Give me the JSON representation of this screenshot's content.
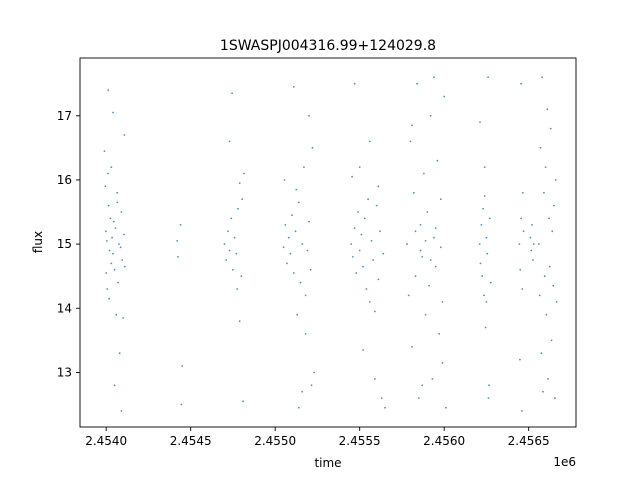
{
  "chart_data": {
    "type": "scatter",
    "title": "1SWASPJ004316.99+124029.8",
    "xlabel": "time",
    "ylabel": "flux",
    "x_offset_label": "1e6",
    "xlim": [
      2453845,
      2456780
    ],
    "ylim": [
      12.15,
      17.9
    ],
    "x_ticks": [
      2454000,
      2454500,
      2455000,
      2455500,
      2456000,
      2456500
    ],
    "x_tick_labels": [
      "2.4540",
      "2.4545",
      "2.4550",
      "2.4555",
      "2.4560",
      "2.4565"
    ],
    "y_ticks": [
      13,
      14,
      15,
      16,
      17
    ],
    "y_tick_labels": [
      "13",
      "14",
      "15",
      "16",
      "17"
    ],
    "grid": false,
    "marker_color": "#1f77b4",
    "marker": "point",
    "series": [
      {
        "values": [
          [
            2453990,
            16.45
          ],
          [
            2453995,
            15.9
          ],
          [
            2453998,
            15.2
          ],
          [
            2454000,
            14.55
          ],
          [
            2454004,
            15.05
          ],
          [
            2454006,
            14.3
          ],
          [
            2454010,
            16.1
          ],
          [
            2454015,
            15.6
          ],
          [
            2454020,
            14.9
          ],
          [
            2454025,
            15.4
          ],
          [
            2454030,
            14.7
          ],
          [
            2454035,
            15.1
          ],
          [
            2454040,
            14.85
          ],
          [
            2454045,
            15.35
          ],
          [
            2454050,
            14.6
          ],
          [
            2454055,
            15.25
          ],
          [
            2454060,
            13.9
          ],
          [
            2454065,
            15.8
          ],
          [
            2454070,
            14.4
          ],
          [
            2454075,
            15.0
          ],
          [
            2454080,
            13.3
          ],
          [
            2454085,
            14.95
          ],
          [
            2454090,
            15.5
          ],
          [
            2454095,
            14.75
          ],
          [
            2454100,
            13.85
          ],
          [
            2454105,
            15.15
          ],
          [
            2454110,
            14.65
          ],
          [
            2454040,
            17.05
          ],
          [
            2454012,
            17.4
          ],
          [
            2454030,
            16.2
          ],
          [
            2454050,
            12.8
          ],
          [
            2454090,
            12.4
          ],
          [
            2454108,
            16.7
          ],
          [
            2454018,
            14.15
          ],
          [
            2454066,
            15.65
          ],
          [
            2454420,
            15.05
          ],
          [
            2454425,
            14.8
          ],
          [
            2454440,
            15.3
          ],
          [
            2454450,
            13.1
          ],
          [
            2454445,
            12.5
          ],
          [
            2454700,
            15.0
          ],
          [
            2454710,
            14.75
          ],
          [
            2454720,
            15.2
          ],
          [
            2454730,
            14.9
          ],
          [
            2454740,
            15.4
          ],
          [
            2454750,
            14.6
          ],
          [
            2454760,
            15.1
          ],
          [
            2454770,
            14.85
          ],
          [
            2454780,
            15.55
          ],
          [
            2454790,
            13.8
          ],
          [
            2454800,
            14.5
          ],
          [
            2454805,
            15.7
          ],
          [
            2454810,
            12.55
          ],
          [
            2454815,
            16.1
          ],
          [
            2454745,
            17.35
          ],
          [
            2454730,
            16.6
          ],
          [
            2454790,
            15.95
          ],
          [
            2454775,
            14.3
          ],
          [
            2455050,
            14.95
          ],
          [
            2455060,
            15.3
          ],
          [
            2455070,
            14.7
          ],
          [
            2455080,
            15.1
          ],
          [
            2455090,
            14.85
          ],
          [
            2455100,
            15.45
          ],
          [
            2455110,
            14.55
          ],
          [
            2455120,
            15.2
          ],
          [
            2455130,
            13.9
          ],
          [
            2455140,
            15.65
          ],
          [
            2455150,
            14.4
          ],
          [
            2455160,
            15.0
          ],
          [
            2455170,
            16.2
          ],
          [
            2455180,
            13.6
          ],
          [
            2455190,
            14.9
          ],
          [
            2455200,
            15.35
          ],
          [
            2455210,
            14.6
          ],
          [
            2455220,
            16.5
          ],
          [
            2455230,
            13.0
          ],
          [
            2455110,
            17.45
          ],
          [
            2455160,
            12.7
          ],
          [
            2455200,
            17.0
          ],
          [
            2455140,
            12.45
          ],
          [
            2455055,
            16.0
          ],
          [
            2455180,
            14.2
          ],
          [
            2455125,
            15.85
          ],
          [
            2455215,
            12.8
          ],
          [
            2455450,
            15.0
          ],
          [
            2455460,
            14.8
          ],
          [
            2455470,
            15.25
          ],
          [
            2455480,
            14.55
          ],
          [
            2455490,
            15.5
          ],
          [
            2455500,
            14.9
          ],
          [
            2455510,
            15.15
          ],
          [
            2455520,
            14.65
          ],
          [
            2455530,
            15.4
          ],
          [
            2455540,
            14.3
          ],
          [
            2455550,
            15.7
          ],
          [
            2455560,
            14.1
          ],
          [
            2455570,
            15.05
          ],
          [
            2455580,
            14.75
          ],
          [
            2455590,
            13.95
          ],
          [
            2455600,
            15.6
          ],
          [
            2455610,
            14.45
          ],
          [
            2455620,
            15.2
          ],
          [
            2455630,
            12.6
          ],
          [
            2455640,
            14.85
          ],
          [
            2455650,
            12.45
          ],
          [
            2455470,
            17.5
          ],
          [
            2455500,
            16.2
          ],
          [
            2455560,
            16.6
          ],
          [
            2455520,
            13.35
          ],
          [
            2455590,
            12.9
          ],
          [
            2455455,
            16.05
          ],
          [
            2455610,
            15.9
          ],
          [
            2455780,
            15.0
          ],
          [
            2455790,
            14.2
          ],
          [
            2455800,
            16.6
          ],
          [
            2455810,
            13.4
          ],
          [
            2455820,
            15.8
          ],
          [
            2455830,
            14.5
          ],
          [
            2455840,
            17.5
          ],
          [
            2455850,
            12.6
          ],
          [
            2455860,
            15.3
          ],
          [
            2455870,
            14.8
          ],
          [
            2455880,
            16.1
          ],
          [
            2455890,
            13.9
          ],
          [
            2455900,
            15.5
          ],
          [
            2455910,
            14.35
          ],
          [
            2455920,
            17.0
          ],
          [
            2455930,
            12.9
          ],
          [
            2455940,
            15.1
          ],
          [
            2455950,
            14.65
          ],
          [
            2455960,
            16.3
          ],
          [
            2455970,
            13.6
          ],
          [
            2455980,
            15.7
          ],
          [
            2455990,
            14.1
          ],
          [
            2456000,
            17.3
          ],
          [
            2456010,
            12.45
          ],
          [
            2455830,
            15.2
          ],
          [
            2455860,
            14.9
          ],
          [
            2455890,
            15.05
          ],
          [
            2455920,
            14.75
          ],
          [
            2455950,
            15.25
          ],
          [
            2455980,
            14.95
          ],
          [
            2455810,
            16.85
          ],
          [
            2455870,
            12.8
          ],
          [
            2455940,
            17.6
          ],
          [
            2455990,
            13.15
          ],
          [
            2456210,
            15.0
          ],
          [
            2456215,
            14.7
          ],
          [
            2456220,
            15.3
          ],
          [
            2456225,
            14.5
          ],
          [
            2456230,
            15.55
          ],
          [
            2456235,
            14.2
          ],
          [
            2456240,
            16.2
          ],
          [
            2456245,
            13.7
          ],
          [
            2456250,
            15.1
          ],
          [
            2456255,
            14.85
          ],
          [
            2456260,
            17.6
          ],
          [
            2456265,
            12.8
          ],
          [
            2456270,
            15.4
          ],
          [
            2456275,
            14.4
          ],
          [
            2456212,
            16.9
          ],
          [
            2456262,
            12.6
          ],
          [
            2456240,
            15.75
          ],
          [
            2456250,
            14.1
          ],
          [
            2456445,
            15.0
          ],
          [
            2456450,
            14.6
          ],
          [
            2456455,
            15.4
          ],
          [
            2456460,
            12.4
          ],
          [
            2456465,
            15.8
          ],
          [
            2456470,
            15.2
          ],
          [
            2456455,
            17.5
          ],
          [
            2456448,
            13.2
          ],
          [
            2456462,
            14.3
          ],
          [
            2456510,
            15.1
          ],
          [
            2456515,
            14.9
          ],
          [
            2456520,
            15.3
          ],
          [
            2456525,
            14.75
          ],
          [
            2456530,
            15.0
          ],
          [
            2456560,
            15.0
          ],
          [
            2456565,
            14.2
          ],
          [
            2456570,
            16.5
          ],
          [
            2456575,
            13.3
          ],
          [
            2456580,
            17.6
          ],
          [
            2456585,
            12.7
          ],
          [
            2456590,
            15.8
          ],
          [
            2456595,
            14.5
          ],
          [
            2456600,
            16.2
          ],
          [
            2456605,
            13.9
          ],
          [
            2456610,
            17.1
          ],
          [
            2456615,
            12.9
          ],
          [
            2456620,
            15.4
          ],
          [
            2456625,
            14.65
          ],
          [
            2456630,
            16.8
          ],
          [
            2456635,
            13.5
          ],
          [
            2456640,
            15.2
          ],
          [
            2456645,
            14.35
          ],
          [
            2456650,
            15.6
          ],
          [
            2456655,
            12.6
          ],
          [
            2456660,
            16.0
          ],
          [
            2456665,
            14.1
          ]
        ]
      }
    ]
  }
}
